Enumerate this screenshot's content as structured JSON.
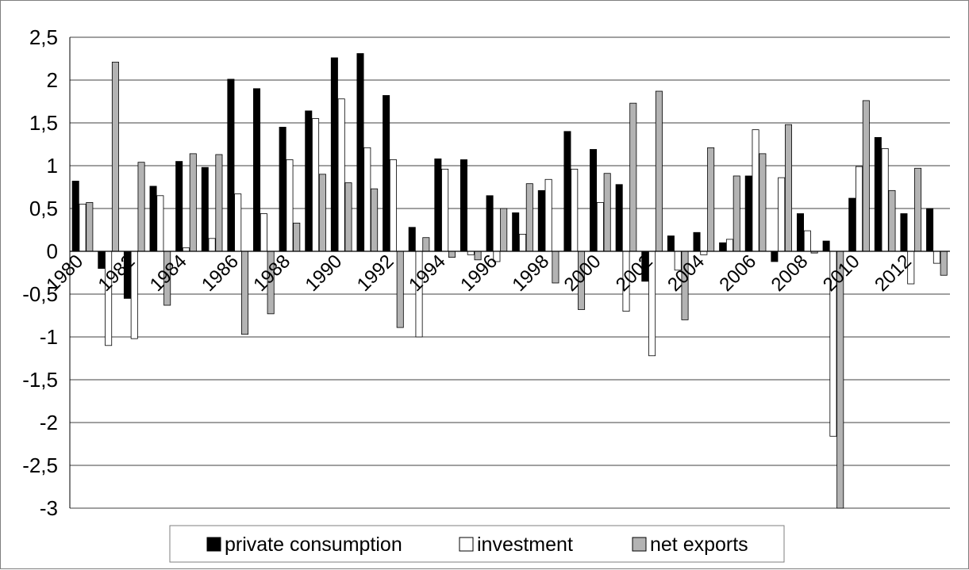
{
  "chart_data": {
    "type": "bar",
    "title": "",
    "xlabel": "",
    "ylabel": "",
    "ylim": [
      -3,
      2.5
    ],
    "ytick_step": 0.5,
    "ytick_labels": [
      "2,5",
      "2",
      "1,5",
      "1",
      "0,5",
      "0",
      "-0,5",
      "-1",
      "-1,5",
      "-2",
      "-2,5",
      "-3"
    ],
    "grid": true,
    "legend_position": "bottom",
    "categories": [
      "1980",
      "1981",
      "1982",
      "1983",
      "1984",
      "1985",
      "1986",
      "1987",
      "1988",
      "1989",
      "1990",
      "1991",
      "1992",
      "1993",
      "1994",
      "1995",
      "1996",
      "1997",
      "1998",
      "1999",
      "2000",
      "2001",
      "2002",
      "2003",
      "2004",
      "2005",
      "2006",
      "2007",
      "2008",
      "2009",
      "2010",
      "2011",
      "2012",
      "2013"
    ],
    "xtick_labels": [
      "1980",
      "",
      "1982",
      "",
      "1984",
      "",
      "1986",
      "",
      "1988",
      "",
      "1990",
      "",
      "1992",
      "",
      "1994",
      "",
      "1996",
      "",
      "1998",
      "",
      "2000",
      "",
      "2002",
      "",
      "2004",
      "",
      "2006",
      "",
      "2008",
      "",
      "2010",
      "",
      "2012",
      ""
    ],
    "series": [
      {
        "name": "private consumption",
        "color": "#000000",
        "values": [
          0.82,
          -0.2,
          -0.55,
          0.76,
          1.05,
          0.98,
          2.01,
          1.9,
          1.45,
          1.64,
          2.26,
          2.31,
          1.82,
          0.28,
          1.08,
          1.07,
          0.65,
          0.45,
          0.71,
          1.4,
          1.19,
          0.78,
          -0.35,
          0.18,
          0.22,
          0.1,
          0.88,
          -0.12,
          0.44,
          0.12,
          0.62,
          1.33,
          0.44,
          0.5
        ]
      },
      {
        "name": "investment",
        "color": "#ffffff",
        "values": [
          0.55,
          -1.1,
          -1.02,
          0.65,
          0.04,
          0.15,
          0.67,
          0.44,
          1.07,
          1.55,
          1.78,
          1.21,
          1.07,
          -1.0,
          0.96,
          -0.04,
          -0.12,
          0.2,
          0.84,
          0.96,
          0.57,
          -0.7,
          -1.22,
          -0.22,
          -0.04,
          0.14,
          1.42,
          0.86,
          0.24,
          -2.16,
          0.99,
          1.2,
          -0.38,
          -0.14
        ]
      },
      {
        "name": "net exports",
        "color": "#b3b3b3",
        "values": [
          0.57,
          2.21,
          1.04,
          -0.63,
          1.14,
          1.13,
          -0.97,
          -0.73,
          0.33,
          0.9,
          0.8,
          0.73,
          -0.89,
          0.16,
          -0.07,
          -0.1,
          0.5,
          0.79,
          -0.37,
          -0.68,
          0.91,
          1.73,
          1.87,
          -0.8,
          1.21,
          0.88,
          1.14,
          1.48,
          -0.02,
          -3.0,
          1.76,
          0.71,
          0.97,
          -0.28
        ]
      }
    ]
  }
}
